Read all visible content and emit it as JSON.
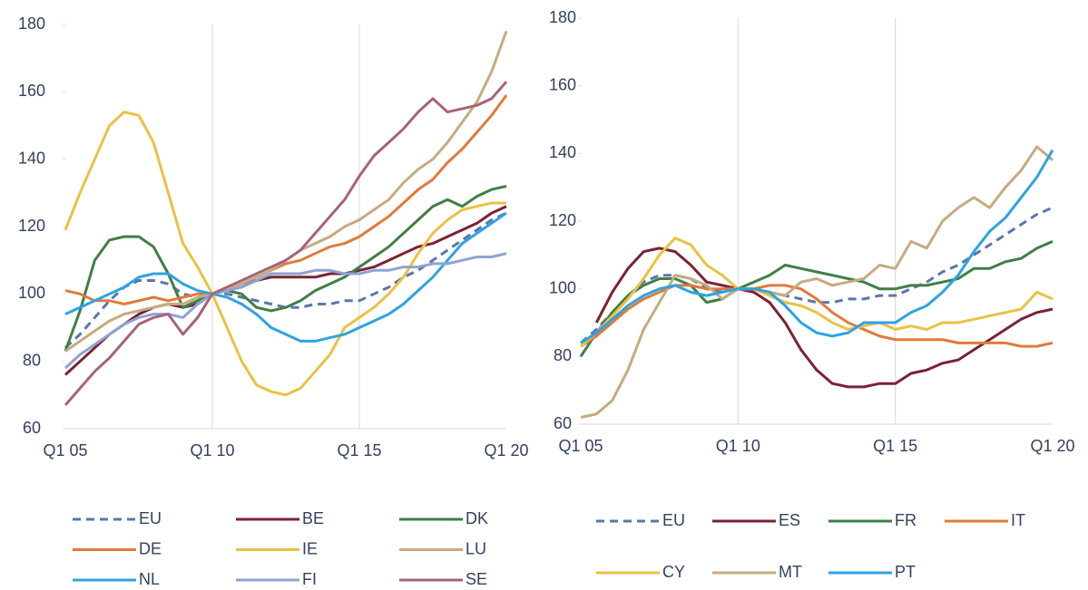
{
  "chart_data": [
    {
      "type": "line",
      "x": [
        2005,
        2005.5,
        2006,
        2006.5,
        2007,
        2007.5,
        2008,
        2008.5,
        2009,
        2009.5,
        2010,
        2010.5,
        2011,
        2011.5,
        2012,
        2012.5,
        2013,
        2013.5,
        2014,
        2014.5,
        2015,
        2015.5,
        2016,
        2016.5,
        2017,
        2017.5,
        2018,
        2018.5,
        2019,
        2019.5,
        2020
      ],
      "xlim": [
        2005,
        2020
      ],
      "xticks": [
        {
          "value": 2005,
          "label": "Q1 05"
        },
        {
          "value": 2010,
          "label": "Q1 10"
        },
        {
          "value": 2015,
          "label": "Q1 15"
        },
        {
          "value": 2020,
          "label": "Q1 20"
        }
      ],
      "ylim": [
        60,
        180
      ],
      "yticks": [
        60,
        80,
        100,
        120,
        140,
        160,
        180
      ],
      "grid": "x",
      "series": [
        {
          "name": "EU",
          "color": "#5a76ad",
          "dash": true,
          "values": [
            84,
            88,
            93,
            98,
            102,
            104,
            104,
            103,
            100,
            99,
            100,
            100,
            99,
            98,
            97,
            96,
            96,
            97,
            97,
            98,
            98,
            100,
            102,
            105,
            107,
            110,
            113,
            116,
            119,
            122,
            124
          ]
        },
        {
          "name": "BE",
          "color": "#7a2235",
          "values": [
            76,
            80,
            84,
            88,
            91,
            94,
            96,
            97,
            96,
            97,
            100,
            101,
            103,
            104,
            105,
            105,
            105,
            105,
            106,
            106,
            107,
            108,
            110,
            112,
            114,
            115,
            117,
            119,
            121,
            124,
            126
          ]
        },
        {
          "name": "DK",
          "color": "#3f7f45",
          "values": [
            83,
            95,
            110,
            116,
            117,
            117,
            114,
            106,
            96,
            98,
            100,
            101,
            100,
            96,
            95,
            96,
            98,
            101,
            103,
            105,
            108,
            111,
            114,
            118,
            122,
            126,
            128,
            126,
            129,
            131,
            132
          ]
        },
        {
          "name": "DE",
          "color": "#e07a3a",
          "values": [
            101,
            100,
            98,
            98,
            97,
            98,
            99,
            98,
            99,
            100,
            100,
            101,
            103,
            105,
            107,
            109,
            110,
            112,
            114,
            115,
            117,
            120,
            123,
            127,
            131,
            134,
            139,
            143,
            148,
            153,
            159
          ]
        },
        {
          "name": "IE",
          "color": "#e9c243",
          "values": [
            119,
            130,
            140,
            150,
            154,
            153,
            145,
            130,
            115,
            108,
            100,
            90,
            80,
            73,
            71,
            70,
            72,
            77,
            82,
            90,
            93,
            96,
            100,
            105,
            112,
            118,
            122,
            125,
            126,
            127,
            127
          ]
        },
        {
          "name": "LU",
          "color": "#c6ab7e",
          "values": [
            83,
            86,
            89,
            92,
            94,
            95,
            96,
            97,
            97,
            99,
            100,
            101,
            103,
            105,
            107,
            110,
            113,
            115,
            117,
            120,
            122,
            125,
            128,
            133,
            137,
            140,
            145,
            151,
            157,
            166,
            178
          ]
        },
        {
          "name": "NL",
          "color": "#2ea3e2",
          "values": [
            94,
            96,
            98,
            100,
            102,
            105,
            106,
            106,
            103,
            101,
            100,
            99,
            97,
            94,
            90,
            88,
            86,
            86,
            87,
            88,
            90,
            92,
            94,
            97,
            101,
            105,
            110,
            115,
            118,
            121,
            124
          ]
        },
        {
          "name": "FI",
          "color": "#8ea3d2",
          "values": [
            78,
            82,
            85,
            88,
            91,
            93,
            94,
            94,
            93,
            97,
            100,
            101,
            102,
            104,
            106,
            106,
            106,
            107,
            107,
            106,
            106,
            107,
            107,
            108,
            108,
            109,
            109,
            110,
            111,
            111,
            112
          ]
        },
        {
          "name": "SE",
          "color": "#a6637b",
          "values": [
            67,
            72,
            77,
            81,
            86,
            91,
            93,
            94,
            88,
            93,
            100,
            102,
            104,
            106,
            108,
            110,
            113,
            118,
            123,
            128,
            135,
            141,
            145,
            149,
            154,
            158,
            154,
            155,
            156,
            158,
            163
          ]
        }
      ]
    },
    {
      "type": "line",
      "x": [
        2005,
        2005.5,
        2006,
        2006.5,
        2007,
        2007.5,
        2008,
        2008.5,
        2009,
        2009.5,
        2010,
        2010.5,
        2011,
        2011.5,
        2012,
        2012.5,
        2013,
        2013.5,
        2014,
        2014.5,
        2015,
        2015.5,
        2016,
        2016.5,
        2017,
        2017.5,
        2018,
        2018.5,
        2019,
        2019.5,
        2020
      ],
      "xlim": [
        2005,
        2020
      ],
      "xticks": [
        {
          "value": 2005,
          "label": "Q1 05"
        },
        {
          "value": 2010,
          "label": "Q1 10"
        },
        {
          "value": 2015,
          "label": "Q1 15"
        },
        {
          "value": 2020,
          "label": "Q1 20"
        }
      ],
      "ylim": [
        60,
        180
      ],
      "yticks": [
        60,
        80,
        100,
        120,
        140,
        160,
        180
      ],
      "grid": "x",
      "series": [
        {
          "name": "EU",
          "color": "#5a76ad",
          "dash": true,
          "values": [
            84,
            88,
            93,
            98,
            102,
            104,
            104,
            103,
            100,
            99,
            100,
            100,
            99,
            98,
            97,
            96,
            96,
            97,
            97,
            98,
            98,
            100,
            102,
            105,
            107,
            110,
            113,
            116,
            119,
            122,
            124
          ]
        },
        {
          "name": "ES",
          "color": "#7a2235",
          "values": [
            null,
            90,
            99,
            106,
            111,
            112,
            111,
            107,
            102,
            101,
            100,
            99,
            96,
            90,
            82,
            76,
            72,
            71,
            71,
            72,
            72,
            75,
            76,
            78,
            79,
            82,
            85,
            88,
            91,
            93,
            94
          ]
        },
        {
          "name": "FR",
          "color": "#3f7f45",
          "values": [
            80,
            87,
            93,
            98,
            101,
            103,
            103,
            101,
            96,
            97,
            100,
            102,
            104,
            107,
            106,
            105,
            104,
            103,
            102,
            100,
            100,
            101,
            101,
            102,
            103,
            106,
            106,
            108,
            109,
            112,
            114
          ]
        },
        {
          "name": "IT",
          "color": "#e07a3a",
          "values": [
            83,
            86,
            90,
            94,
            97,
            99,
            101,
            101,
            100,
            100,
            100,
            100,
            101,
            101,
            100,
            97,
            93,
            90,
            88,
            86,
            85,
            85,
            85,
            85,
            84,
            84,
            84,
            84,
            83,
            83,
            84
          ]
        },
        {
          "name": "CY",
          "color": "#e9c243",
          "values": [
            83,
            87,
            92,
            97,
            103,
            110,
            115,
            113,
            107,
            104,
            100,
            100,
            98,
            96,
            95,
            93,
            90,
            88,
            89,
            90,
            88,
            89,
            88,
            90,
            90,
            91,
            92,
            93,
            94,
            99,
            97
          ]
        },
        {
          "name": "MT",
          "color": "#c6ab7e",
          "values": [
            62,
            63,
            67,
            76,
            88,
            96,
            104,
            103,
            101,
            97,
            100,
            100,
            99,
            98,
            102,
            103,
            101,
            102,
            103,
            107,
            106,
            114,
            112,
            120,
            124,
            127,
            124,
            130,
            135,
            142,
            138
          ]
        },
        {
          "name": "PT",
          "color": "#2ea3e2",
          "values": [
            84,
            87,
            91,
            95,
            98,
            100,
            101,
            99,
            98,
            99,
            100,
            100,
            99,
            95,
            90,
            87,
            86,
            87,
            90,
            90,
            90,
            93,
            95,
            99,
            104,
            111,
            117,
            121,
            127,
            133,
            141
          ]
        }
      ]
    }
  ]
}
